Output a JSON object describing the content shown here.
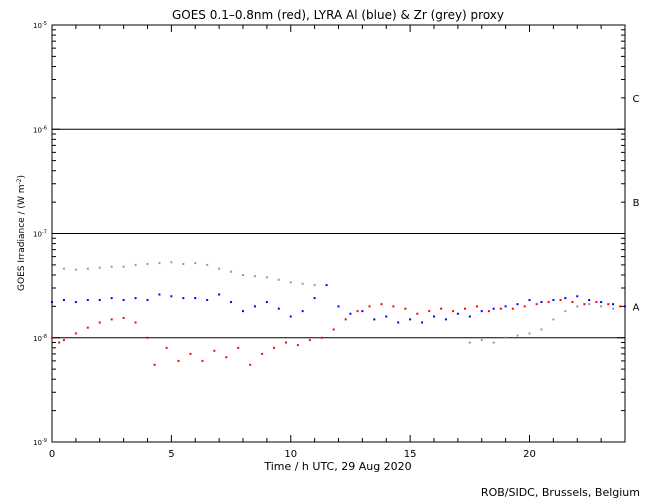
{
  "chart_data": {
    "type": "scatter",
    "title": "GOES 0.1–0.8nm (red), LYRA Al (blue) & Zr (grey) proxy",
    "xlabel": "Time / h UTC, 29 Aug 2020",
    "ylabel_main": "GOES Irradiance / (W m",
    "ylabel_sup": "-2",
    "ylabel_close": ")",
    "credit": "ROB/SIDC, Brussels, Belgium",
    "xlim": [
      0,
      24
    ],
    "ylim": [
      1e-09,
      1e-05
    ],
    "yscale": "log",
    "x_ticks": [
      {
        "value": 0,
        "label": "0"
      },
      {
        "value": 5,
        "label": "5"
      },
      {
        "value": 10,
        "label": "10"
      },
      {
        "value": 15,
        "label": "15"
      },
      {
        "value": 20,
        "label": "20"
      }
    ],
    "y_ticks": [
      {
        "value": 1e-09,
        "base": "10",
        "exp": "-9"
      },
      {
        "value": 1e-08,
        "base": "10",
        "exp": "-8"
      },
      {
        "value": 1e-07,
        "base": "10",
        "exp": "-7"
      },
      {
        "value": 1e-06,
        "base": "10",
        "exp": "-6"
      },
      {
        "value": 1e-05,
        "base": "10",
        "exp": "-5"
      }
    ],
    "reference_lines": [
      1e-08,
      1e-07,
      1e-06
    ],
    "class_labels": [
      {
        "label": "A",
        "value": 2e-08
      },
      {
        "label": "B",
        "value": 2e-07
      },
      {
        "label": "C",
        "value": 2e-06
      }
    ],
    "colors": {
      "red": "#ff0000",
      "blue": "#0000ff",
      "grey": "#9a9a9a",
      "axis": "#000000"
    },
    "series": [
      {
        "color": "red",
        "x": [
          0.0,
          0.3,
          0.5,
          1.0,
          1.5,
          2.0,
          2.5,
          3.0,
          3.5,
          4.0,
          4.3,
          4.8,
          5.3,
          5.8,
          6.3,
          6.8,
          7.3,
          7.8,
          8.3,
          8.8,
          9.3,
          9.8,
          10.3,
          10.8,
          11.3,
          11.8,
          12.3,
          12.8,
          13.3,
          13.8,
          14.3,
          14.8,
          15.3,
          15.8,
          16.3,
          16.8,
          17.3,
          17.8,
          18.3,
          18.8,
          19.3,
          19.8,
          20.3,
          20.8,
          21.3,
          21.8,
          22.3,
          22.8,
          23.3,
          23.8
        ],
        "y": [
          1e-08,
          9e-09,
          9.5e-09,
          1.1e-08,
          1.25e-08,
          1.4e-08,
          1.5e-08,
          1.55e-08,
          1.4e-08,
          1e-08,
          5.5e-09,
          8e-09,
          6e-09,
          7e-09,
          6e-09,
          7.5e-09,
          6.5e-09,
          8e-09,
          5.5e-09,
          7e-09,
          8e-09,
          9e-09,
          8.5e-09,
          9.5e-09,
          1e-08,
          1.2e-08,
          1.5e-08,
          1.8e-08,
          2e-08,
          2.1e-08,
          2e-08,
          1.9e-08,
          1.7e-08,
          1.8e-08,
          1.9e-08,
          1.8e-08,
          1.9e-08,
          2e-08,
          1.8e-08,
          1.9e-08,
          1.9e-08,
          2e-08,
          2.1e-08,
          2.2e-08,
          2.3e-08,
          2.2e-08,
          2.1e-08,
          2.2e-08,
          2.1e-08,
          2e-08
        ]
      },
      {
        "color": "blue",
        "x": [
          0.0,
          0.5,
          1.0,
          1.5,
          2.0,
          2.5,
          3.0,
          3.5,
          4.0,
          4.5,
          5.0,
          5.5,
          6.0,
          6.5,
          7.0,
          7.5,
          8.0,
          8.5,
          9.0,
          9.5,
          10.0,
          10.5,
          11.0,
          11.5,
          12.0,
          12.5,
          13.0,
          13.5,
          14.0,
          14.5,
          15.0,
          15.5,
          16.0,
          16.5,
          17.0,
          17.5,
          18.0,
          18.5,
          19.0,
          19.5,
          20.0,
          20.5,
          21.0,
          21.5,
          22.0,
          22.5,
          23.0,
          23.5,
          24.0
        ],
        "y": [
          2.2e-08,
          2.3e-08,
          2.2e-08,
          2.3e-08,
          2.3e-08,
          2.4e-08,
          2.3e-08,
          2.4e-08,
          2.3e-08,
          2.6e-08,
          2.5e-08,
          2.4e-08,
          2.4e-08,
          2.3e-08,
          2.6e-08,
          2.2e-08,
          1.8e-08,
          2e-08,
          2.2e-08,
          1.9e-08,
          1.6e-08,
          1.8e-08,
          2.4e-08,
          3.2e-08,
          2e-08,
          1.7e-08,
          1.8e-08,
          1.5e-08,
          1.6e-08,
          1.4e-08,
          1.5e-08,
          1.4e-08,
          1.6e-08,
          1.5e-08,
          1.7e-08,
          1.6e-08,
          1.8e-08,
          1.9e-08,
          2e-08,
          2.1e-08,
          2.3e-08,
          2.2e-08,
          2.3e-08,
          2.4e-08,
          2.5e-08,
          2.3e-08,
          2.2e-08,
          2.1e-08,
          2e-08
        ]
      },
      {
        "color": "grey",
        "x": [
          0.5,
          1.0,
          1.5,
          2.0,
          2.5,
          3.0,
          3.5,
          4.0,
          4.5,
          5.0,
          5.5,
          6.0,
          6.5,
          7.0,
          7.5,
          8.0,
          8.5,
          9.0,
          9.5,
          10.0,
          10.5,
          11.0,
          17.5,
          18.0,
          18.5,
          19.0,
          19.5,
          20.0,
          20.5,
          21.0,
          21.5,
          22.0,
          22.5,
          23.0,
          23.5
        ],
        "y": [
          4.6e-08,
          4.5e-08,
          4.6e-08,
          4.7e-08,
          4.8e-08,
          4.8e-08,
          5e-08,
          5.1e-08,
          5.2e-08,
          5.3e-08,
          5.1e-08,
          5.2e-08,
          5e-08,
          4.6e-08,
          4.3e-08,
          4e-08,
          3.9e-08,
          3.8e-08,
          3.6e-08,
          3.4e-08,
          3.3e-08,
          3.2e-08,
          9e-09,
          9.5e-09,
          9e-09,
          1e-08,
          1.05e-08,
          1.1e-08,
          1.2e-08,
          1.5e-08,
          1.8e-08,
          2e-08,
          2.1e-08,
          2e-08,
          1.9e-08
        ]
      }
    ]
  }
}
